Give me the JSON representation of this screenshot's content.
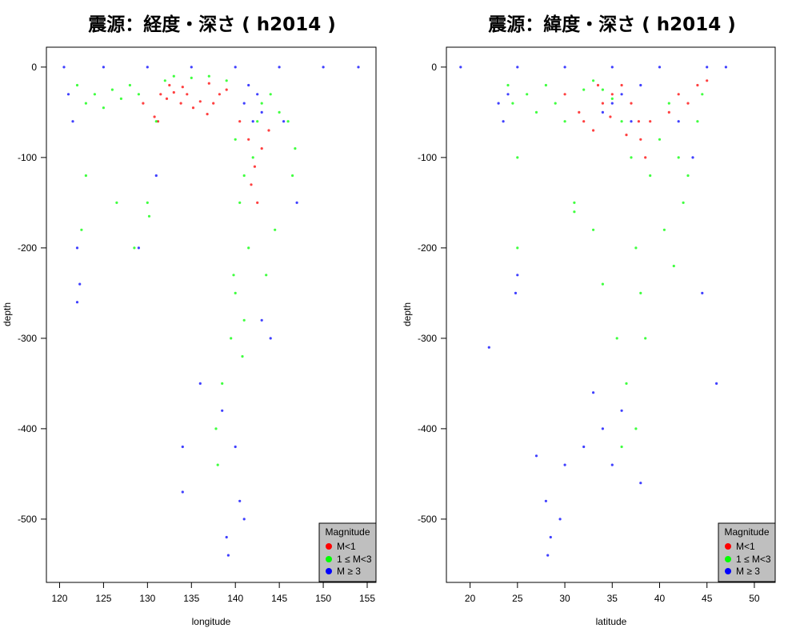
{
  "chart_data": [
    {
      "type": "scatter",
      "title": "震源：経度・深さ ( h2014 )",
      "xlabel": "longitude",
      "ylabel": "depth",
      "xlim": [
        118.5,
        156.0
      ],
      "ylim": [
        -570,
        22
      ],
      "x_ticks": [
        120,
        125,
        130,
        135,
        140,
        145,
        150,
        155
      ],
      "y_ticks": [
        0,
        -100,
        -200,
        -300,
        -400,
        -500
      ],
      "legend": {
        "title": "Magnitude",
        "position": "bottom-right",
        "entries": [
          {
            "label": "M<1",
            "color": "#ff0000"
          },
          {
            "label": "1 ≤ M<3",
            "color": "#00ff00"
          },
          {
            "label": "M ≥ 3",
            "color": "#0000ff"
          }
        ]
      },
      "series": [
        {
          "name": "M<1",
          "color": "#ff0000",
          "points": [
            [
              131.5,
              -30
            ],
            [
              132.2,
              -35
            ],
            [
              133.0,
              -28
            ],
            [
              133.8,
              -40
            ],
            [
              134.5,
              -30
            ],
            [
              135.2,
              -45
            ],
            [
              136.0,
              -38
            ],
            [
              136.8,
              -52
            ],
            [
              137.5,
              -40
            ],
            [
              138.2,
              -30
            ],
            [
              139.0,
              -25
            ],
            [
              130.8,
              -55
            ],
            [
              131.2,
              -60
            ],
            [
              141.5,
              -80
            ],
            [
              142.2,
              -110
            ],
            [
              143.0,
              -90
            ],
            [
              143.8,
              -70
            ],
            [
              132.5,
              -20
            ],
            [
              134.0,
              -22
            ],
            [
              137.0,
              -18
            ],
            [
              129.5,
              -40
            ],
            [
              142.5,
              -150
            ],
            [
              141.8,
              -130
            ],
            [
              140.5,
              -60
            ]
          ]
        },
        {
          "name": "1 ≤ M<3",
          "color": "#00ff00",
          "points": [
            [
              122.0,
              -20
            ],
            [
              123.0,
              -40
            ],
            [
              124.0,
              -30
            ],
            [
              125.0,
              -45
            ],
            [
              126.0,
              -25
            ],
            [
              127.0,
              -35
            ],
            [
              128.0,
              -20
            ],
            [
              129.0,
              -30
            ],
            [
              130.0,
              -150
            ],
            [
              130.2,
              -165
            ],
            [
              131.0,
              -60
            ],
            [
              132.0,
              -15
            ],
            [
              133.0,
              -10
            ],
            [
              135.0,
              -12
            ],
            [
              137.0,
              -10
            ],
            [
              139.0,
              -15
            ],
            [
              140.0,
              -80
            ],
            [
              140.5,
              -150
            ],
            [
              141.0,
              -120
            ],
            [
              141.5,
              -200
            ],
            [
              142.0,
              -100
            ],
            [
              142.5,
              -60
            ],
            [
              143.0,
              -40
            ],
            [
              144.0,
              -30
            ],
            [
              145.0,
              -50
            ],
            [
              146.0,
              -60
            ],
            [
              140.0,
              -250
            ],
            [
              139.5,
              -300
            ],
            [
              138.5,
              -350
            ],
            [
              137.8,
              -400
            ],
            [
              138.0,
              -440
            ],
            [
              141.0,
              -280
            ],
            [
              140.8,
              -320
            ],
            [
              139.8,
              -230
            ],
            [
              123.0,
              -120
            ],
            [
              122.5,
              -180
            ],
            [
              126.5,
              -150
            ],
            [
              128.5,
              -200
            ],
            [
              146.5,
              -120
            ],
            [
              146.8,
              -90
            ],
            [
              144.5,
              -180
            ],
            [
              143.5,
              -230
            ]
          ]
        },
        {
          "name": "M ≥ 3",
          "color": "#0000ff",
          "points": [
            [
              120.5,
              0
            ],
            [
              125.0,
              0
            ],
            [
              130.0,
              0
            ],
            [
              135.0,
              0
            ],
            [
              140.0,
              0
            ],
            [
              145.0,
              0
            ],
            [
              150.0,
              0
            ],
            [
              154.0,
              0
            ],
            [
              121.0,
              -30
            ],
            [
              121.5,
              -60
            ],
            [
              122.0,
              -200
            ],
            [
              122.3,
              -240
            ],
            [
              122.0,
              -260
            ],
            [
              141.0,
              -40
            ],
            [
              142.0,
              -60
            ],
            [
              142.5,
              -30
            ],
            [
              141.5,
              -20
            ],
            [
              143.0,
              -50
            ],
            [
              145.5,
              -60
            ],
            [
              138.5,
              -380
            ],
            [
              139.0,
              -520
            ],
            [
              139.2,
              -540
            ],
            [
              140.5,
              -480
            ],
            [
              141.0,
              -500
            ],
            [
              140.0,
              -420
            ],
            [
              136.0,
              -350
            ],
            [
              134.0,
              -420
            ],
            [
              134.0,
              -470
            ],
            [
              129.0,
              -200
            ],
            [
              131.0,
              -120
            ],
            [
              147.0,
              -150
            ],
            [
              144.0,
              -300
            ],
            [
              143.0,
              -280
            ]
          ]
        }
      ]
    },
    {
      "type": "scatter",
      "title": "震源：緯度・深さ ( h2014 )",
      "xlabel": "latitude",
      "ylabel": "depth",
      "xlim": [
        17.5,
        52.2
      ],
      "ylim": [
        -570,
        22
      ],
      "x_ticks": [
        20,
        25,
        30,
        35,
        40,
        45,
        50
      ],
      "y_ticks": [
        0,
        -100,
        -200,
        -300,
        -400,
        -500
      ],
      "legend": {
        "title": "Magnitude",
        "position": "bottom-right",
        "entries": [
          {
            "label": "M<1",
            "color": "#ff0000"
          },
          {
            "label": "1 ≤ M<3",
            "color": "#00ff00"
          },
          {
            "label": "M ≥ 3",
            "color": "#0000ff"
          }
        ]
      },
      "series": [
        {
          "name": "M<1",
          "color": "#ff0000",
          "points": [
            [
              31.5,
              -50
            ],
            [
              32.0,
              -60
            ],
            [
              33.0,
              -70
            ],
            [
              34.0,
              -40
            ],
            [
              35.0,
              -30
            ],
            [
              36.0,
              -20
            ],
            [
              37.0,
              -40
            ],
            [
              38.0,
              -80
            ],
            [
              38.5,
              -100
            ],
            [
              39.0,
              -60
            ],
            [
              41.0,
              -50
            ],
            [
              42.0,
              -30
            ],
            [
              43.0,
              -40
            ],
            [
              44.0,
              -20
            ],
            [
              45.0,
              -15
            ],
            [
              33.5,
              -20
            ],
            [
              34.8,
              -55
            ],
            [
              36.5,
              -75
            ],
            [
              37.8,
              -60
            ],
            [
              30.0,
              -30
            ]
          ]
        },
        {
          "name": "1 ≤ M<3",
          "color": "#00ff00",
          "points": [
            [
              24.0,
              -20
            ],
            [
              24.5,
              -40
            ],
            [
              25.0,
              -100
            ],
            [
              25.0,
              -200
            ],
            [
              26.0,
              -30
            ],
            [
              27.0,
              -50
            ],
            [
              28.0,
              -20
            ],
            [
              29.0,
              -40
            ],
            [
              30.0,
              -60
            ],
            [
              31.0,
              -150
            ],
            [
              31.0,
              -160
            ],
            [
              32.0,
              -25
            ],
            [
              33.0,
              -15
            ],
            [
              34.0,
              -25
            ],
            [
              35.0,
              -35
            ],
            [
              36.0,
              -60
            ],
            [
              37.0,
              -100
            ],
            [
              37.5,
              -200
            ],
            [
              38.0,
              -250
            ],
            [
              38.5,
              -300
            ],
            [
              37.5,
              -400
            ],
            [
              36.5,
              -350
            ],
            [
              39.0,
              -120
            ],
            [
              40.0,
              -80
            ],
            [
              41.0,
              -40
            ],
            [
              42.0,
              -100
            ],
            [
              42.5,
              -150
            ],
            [
              43.0,
              -120
            ],
            [
              44.0,
              -60
            ],
            [
              44.5,
              -30
            ],
            [
              34.0,
              -240
            ],
            [
              33.0,
              -180
            ],
            [
              35.5,
              -300
            ],
            [
              36.0,
              -420
            ],
            [
              40.5,
              -180
            ],
            [
              41.5,
              -220
            ]
          ]
        },
        {
          "name": "M ≥ 3",
          "color": "#0000ff",
          "points": [
            [
              19.0,
              0
            ],
            [
              25.0,
              0
            ],
            [
              30.0,
              0
            ],
            [
              35.0,
              0
            ],
            [
              40.0,
              0
            ],
            [
              45.0,
              0
            ],
            [
              47.0,
              0
            ],
            [
              23.0,
              -40
            ],
            [
              23.5,
              -60
            ],
            [
              24.0,
              -30
            ],
            [
              24.8,
              -250
            ],
            [
              25.0,
              -230
            ],
            [
              22.0,
              -310
            ],
            [
              35.0,
              -40
            ],
            [
              36.0,
              -30
            ],
            [
              37.0,
              -60
            ],
            [
              38.0,
              -20
            ],
            [
              34.0,
              -50
            ],
            [
              42.0,
              -60
            ],
            [
              43.5,
              -100
            ],
            [
              44.5,
              -250
            ],
            [
              46.0,
              -350
            ],
            [
              28.0,
              -480
            ],
            [
              28.5,
              -520
            ],
            [
              28.2,
              -540
            ],
            [
              29.5,
              -500
            ],
            [
              33.0,
              -360
            ],
            [
              34.0,
              -400
            ],
            [
              35.0,
              -440
            ],
            [
              36.0,
              -380
            ],
            [
              32.0,
              -420
            ],
            [
              30.0,
              -440
            ],
            [
              27.0,
              -430
            ],
            [
              38.0,
              -460
            ]
          ]
        }
      ]
    }
  ]
}
